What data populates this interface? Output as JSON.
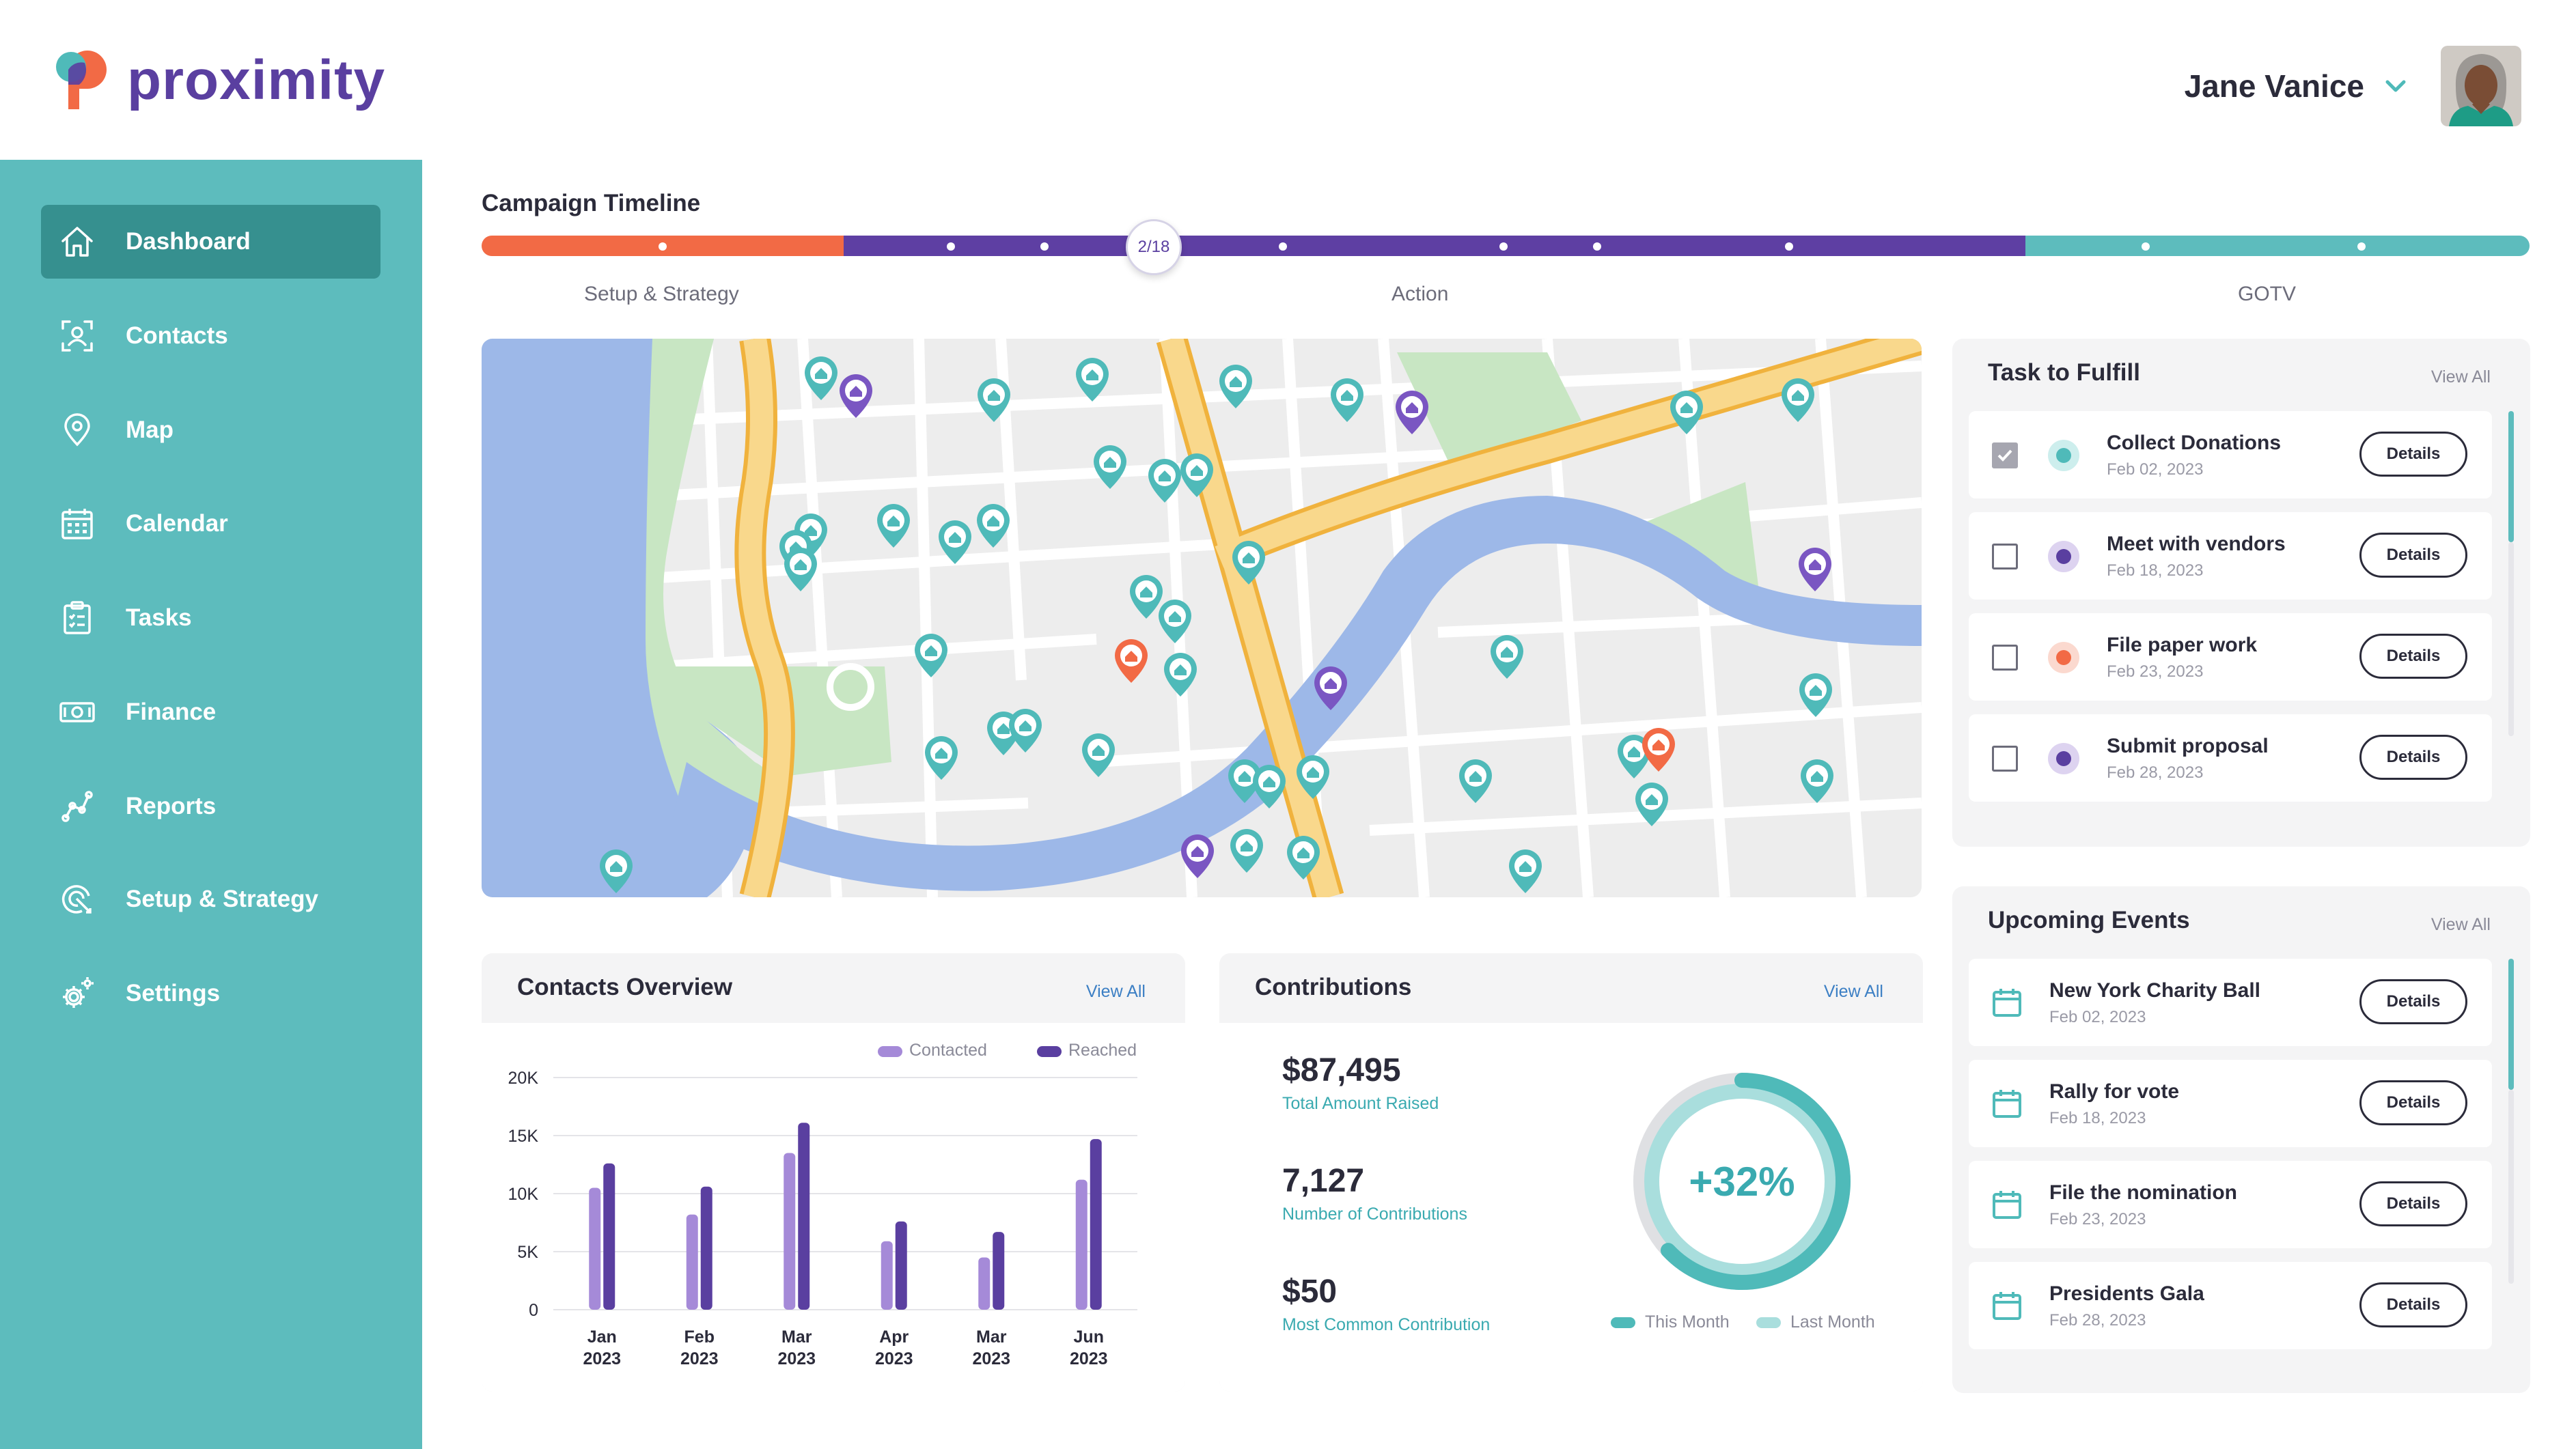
{
  "app": {
    "brand": "proximity"
  },
  "user": {
    "name": "Jane Vanice"
  },
  "sidebar": {
    "items": [
      {
        "label": "Dashboard",
        "icon": "home-icon",
        "active": true
      },
      {
        "label": "Contacts",
        "icon": "contacts-icon"
      },
      {
        "label": "Map",
        "icon": "map-pin-icon"
      },
      {
        "label": "Calendar",
        "icon": "calendar-icon"
      },
      {
        "label": "Tasks",
        "icon": "clipboard-icon"
      },
      {
        "label": "Finance",
        "icon": "money-icon"
      },
      {
        "label": "Reports",
        "icon": "reports-icon"
      },
      {
        "label": "Setup & Strategy",
        "icon": "target-icon"
      },
      {
        "label": "Settings",
        "icon": "gear-icon"
      }
    ]
  },
  "timeline": {
    "title": "Campaign Timeline",
    "current": "2/18",
    "phases": [
      "Setup & Strategy",
      "Action",
      "GOTV"
    ],
    "colors": {
      "setup": "#f26a45",
      "action": "#5e3fa3",
      "gotv": "#5dbcbd"
    }
  },
  "contacts_overview": {
    "title": "Contacts Overview",
    "view_all": "View All",
    "legend": [
      "Contacted",
      "Reached"
    ]
  },
  "chart_data": {
    "type": "bar",
    "categories": [
      "Jan 2023",
      "Feb 2023",
      "Mar 2023",
      "Apr 2023",
      "Mar 2023",
      "Jun 2023"
    ],
    "category_lines": [
      [
        "Jan",
        "2023"
      ],
      [
        "Feb",
        "2023"
      ],
      [
        "Mar",
        "2023"
      ],
      [
        "Apr",
        "2023"
      ],
      [
        "Mar",
        "2023"
      ],
      [
        "Jun",
        "2023"
      ]
    ],
    "series": [
      {
        "name": "Contacted",
        "values": [
          10500,
          8200,
          13500,
          5900,
          4500,
          11200
        ],
        "color": "#a58ad8"
      },
      {
        "name": "Reached",
        "values": [
          12600,
          10600,
          16100,
          7600,
          6700,
          14700
        ],
        "color": "#5a3fa0"
      }
    ],
    "yticks": [
      "20K",
      "15K",
      "10K",
      "5K",
      "0"
    ],
    "ylim": [
      0,
      20000
    ],
    "legend": "top-right",
    "grid": true
  },
  "contributions": {
    "title": "Contributions",
    "view_all": "View All",
    "stats": [
      {
        "value": "$87,495",
        "label": "Total Amount Raised"
      },
      {
        "value": "7,127",
        "label": "Number of Contributions"
      },
      {
        "value": "$50",
        "label": "Most Common Contribution"
      }
    ],
    "donut_label": "+32%",
    "this_month_fraction": 0.63,
    "legend": [
      "This Month",
      "Last Month"
    ]
  },
  "tasks": {
    "title": "Task to Fulfill",
    "view_all": "View All",
    "items": [
      {
        "title": "Collect Donations",
        "date": "Feb 02, 2023",
        "checked": true,
        "color": "#4fbab9",
        "ring": "#cdeeed",
        "button": "Details"
      },
      {
        "title": "Meet with vendors",
        "date": "Feb 18, 2023",
        "checked": false,
        "color": "#5a3fa0",
        "ring": "#ddd3f0",
        "button": "Details"
      },
      {
        "title": "File paper work",
        "date": "Feb 23, 2023",
        "checked": false,
        "color": "#f26a45",
        "ring": "#fbd9cf",
        "button": "Details"
      },
      {
        "title": "Submit proposal",
        "date": "Feb 28, 2023",
        "checked": false,
        "color": "#5a3fa0",
        "ring": "#ddd3f0",
        "button": "Details"
      }
    ]
  },
  "events": {
    "title": "Upcoming Events",
    "view_all": "View All",
    "items": [
      {
        "title": "New York Charity Ball",
        "date": "Feb 02, 2023",
        "button": "Details"
      },
      {
        "title": "Rally for vote",
        "date": "Feb 18, 2023",
        "button": "Details"
      },
      {
        "title": "File the nomination",
        "date": "Feb 23, 2023",
        "button": "Details"
      },
      {
        "title": "Presidents Gala",
        "date": "Feb 28, 2023",
        "button": "Details"
      }
    ]
  }
}
